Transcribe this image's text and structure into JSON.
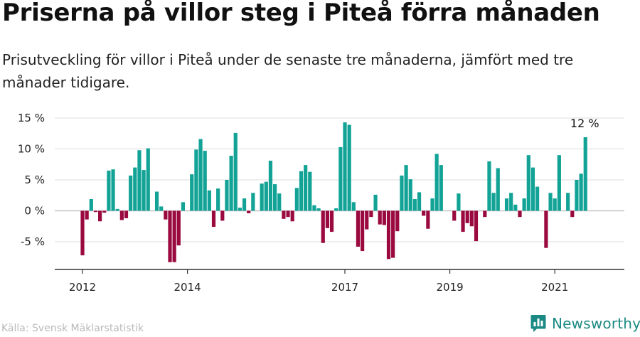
{
  "header": {
    "title": "Priserna på villor steg i Piteå förra månaden",
    "subtitle": "Prisutveckling för villor i Piteå under de senaste tre månaderna, jämfört med tre månader tidigare."
  },
  "footer": {
    "source": "Källa: Svensk Mäklarstatistik",
    "brand": "Newsworthy"
  },
  "colors": {
    "positive": "#12a396",
    "negative": "#9a0a3f",
    "grid": "#dddddd",
    "axis": "#333333",
    "brand": "#1c8a84"
  },
  "icons": {
    "brand": "newsworthy-logo-icon"
  },
  "chart_data": {
    "type": "bar",
    "title": "Priserna på villor steg i Piteå förra månaden",
    "unit": "%",
    "ylim": [
      -8.5,
      15
    ],
    "yticks": [
      15,
      10,
      5,
      0,
      -5
    ],
    "ytick_labels": [
      "15 %",
      "10 %",
      "5 %",
      "0 %",
      "-5 %"
    ],
    "start_year": 2012,
    "start_month": 1,
    "xticks": [
      2012,
      2014,
      2017,
      2019,
      2021
    ],
    "xtick_labels": [
      "2012",
      "2014",
      "2017",
      "2019",
      "2021"
    ],
    "annotation": "12 %",
    "values": [
      -7.2,
      -1.4,
      1.9,
      -0.2,
      -1.7,
      -0.3,
      6.5,
      6.7,
      0.3,
      -1.5,
      -1.2,
      5.7,
      7.0,
      9.8,
      6.6,
      10.1,
      0.0,
      3.1,
      0.7,
      -1.4,
      -8.3,
      -8.3,
      -5.6,
      1.4,
      0.0,
      5.9,
      9.9,
      11.6,
      9.7,
      3.3,
      -2.6,
      3.6,
      -1.6,
      5.0,
      8.9,
      12.6,
      0.5,
      2.0,
      -0.4,
      2.9,
      0.0,
      4.4,
      4.7,
      8.1,
      4.3,
      2.8,
      -1.3,
      -1.0,
      -1.7,
      3.7,
      6.4,
      7.4,
      6.3,
      0.9,
      0.4,
      -5.2,
      -2.8,
      -3.4,
      0.4,
      10.3,
      14.3,
      13.9,
      1.4,
      -5.8,
      -6.5,
      -3.0,
      -1.0,
      2.6,
      -2.2,
      -2.3,
      -7.8,
      -7.6,
      -3.3,
      5.7,
      7.4,
      5.1,
      1.9,
      3.0,
      -0.8,
      -2.9,
      2.0,
      9.2,
      7.4,
      0.0,
      0.0,
      -1.6,
      2.8,
      -3.4,
      -2.0,
      -2.5,
      -4.9,
      0.0,
      -1.0,
      8.0,
      2.9,
      6.9,
      0.0,
      2.0,
      2.9,
      1.0,
      -1.0,
      2.0,
      9.0,
      7.0,
      3.9,
      0.0,
      -6.0,
      2.9,
      2.0,
      9.0,
      0.0,
      2.9,
      -1.0,
      5.0,
      6.0,
      11.9
    ]
  }
}
